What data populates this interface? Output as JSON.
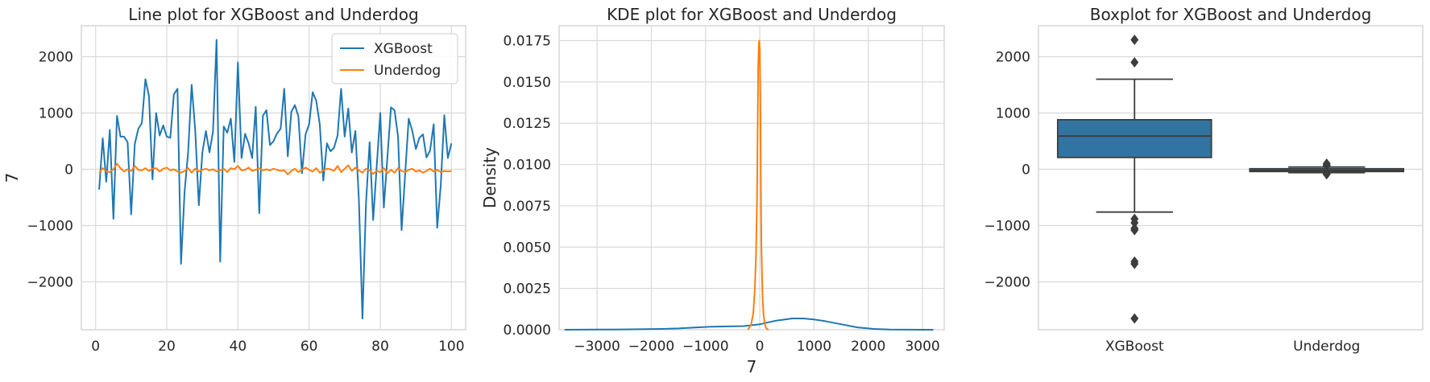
{
  "chart_data": [
    {
      "type": "line",
      "title": "Line plot for XGBoost and Underdog",
      "xlabel": "",
      "ylabel": "7",
      "xlim": [
        -4,
        104
      ],
      "ylim": [
        -2850,
        2550
      ],
      "xticks": [
        0,
        20,
        40,
        60,
        80,
        100
      ],
      "yticks": [
        -2000,
        -1000,
        0,
        1000,
        2000
      ],
      "xtick_labels": [
        "0",
        "20",
        "40",
        "60",
        "80",
        "100"
      ],
      "ytick_labels": [
        "−2000",
        "−1000",
        "0",
        "1000",
        "2000"
      ],
      "grid": true,
      "legend_position": "top-right",
      "series": [
        {
          "name": "XGBoost",
          "color": "#1f77b4",
          "x": [
            1,
            2,
            3,
            4,
            5,
            6,
            7,
            8,
            9,
            10,
            11,
            12,
            13,
            14,
            15,
            16,
            17,
            18,
            19,
            20,
            21,
            22,
            23,
            24,
            25,
            26,
            27,
            28,
            29,
            30,
            31,
            32,
            33,
            34,
            35,
            36,
            37,
            38,
            39,
            40,
            41,
            42,
            43,
            44,
            45,
            46,
            47,
            48,
            49,
            50,
            51,
            52,
            53,
            54,
            55,
            56,
            57,
            58,
            59,
            60,
            61,
            62,
            63,
            64,
            65,
            66,
            67,
            68,
            69,
            70,
            71,
            72,
            73,
            74,
            75,
            76,
            77,
            78,
            79,
            80,
            81,
            82,
            83,
            84,
            85,
            86,
            87,
            88,
            89,
            90,
            91,
            92,
            93,
            94,
            95,
            96,
            97,
            98,
            99,
            100
          ],
          "values": [
            -360,
            550,
            -220,
            700,
            -880,
            950,
            580,
            580,
            480,
            -800,
            450,
            720,
            820,
            1600,
            1300,
            -180,
            1000,
            600,
            780,
            580,
            560,
            1330,
            1430,
            -1680,
            -400,
            300,
            1500,
            700,
            -640,
            300,
            680,
            300,
            670,
            2300,
            -1640,
            760,
            650,
            900,
            130,
            1900,
            200,
            630,
            460,
            200,
            1110,
            -780,
            950,
            1050,
            430,
            500,
            640,
            720,
            1430,
            230,
            1020,
            1140,
            940,
            -70,
            620,
            800,
            1370,
            1220,
            800,
            -200,
            460,
            320,
            380,
            600,
            1430,
            580,
            1080,
            300,
            680,
            -550,
            -2650,
            -600,
            480,
            -900,
            50,
            1000,
            -680,
            200,
            1100,
            1050,
            580,
            -1080,
            -90,
            900,
            680,
            360,
            560,
            620,
            210,
            330,
            800,
            -1040,
            -280,
            960,
            200,
            460
          ]
        },
        {
          "name": "Underdog",
          "color": "#ff7f0e",
          "x": [
            1,
            2,
            3,
            4,
            5,
            6,
            7,
            8,
            9,
            10,
            11,
            12,
            13,
            14,
            15,
            16,
            17,
            18,
            19,
            20,
            21,
            22,
            23,
            24,
            25,
            26,
            27,
            28,
            29,
            30,
            31,
            32,
            33,
            34,
            35,
            36,
            37,
            38,
            39,
            40,
            41,
            42,
            43,
            44,
            45,
            46,
            47,
            48,
            49,
            50,
            51,
            52,
            53,
            54,
            55,
            56,
            57,
            58,
            59,
            60,
            61,
            62,
            63,
            64,
            65,
            66,
            67,
            68,
            69,
            70,
            71,
            72,
            73,
            74,
            75,
            76,
            77,
            78,
            79,
            80,
            81,
            82,
            83,
            84,
            85,
            86,
            87,
            88,
            89,
            90,
            91,
            92,
            93,
            94,
            95,
            96,
            97,
            98,
            99,
            100
          ],
          "values": [
            -60,
            20,
            -40,
            -50,
            0,
            100,
            20,
            -40,
            0,
            -30,
            60,
            -10,
            -20,
            20,
            -30,
            10,
            20,
            -40,
            10,
            30,
            -20,
            0,
            -40,
            -60,
            -30,
            20,
            -60,
            10,
            -40,
            -10,
            10,
            -20,
            0,
            -40,
            -20,
            10,
            -50,
            20,
            0,
            60,
            -20,
            -10,
            30,
            -30,
            -10,
            20,
            -20,
            0,
            -20,
            10,
            -10,
            -30,
            -20,
            -90,
            -30,
            10,
            -50,
            -10,
            30,
            -10,
            -40,
            20,
            -60,
            -20,
            10,
            0,
            -30,
            60,
            -50,
            10,
            70,
            -30,
            30,
            -20,
            -60,
            10,
            -20,
            -80,
            -30,
            -50,
            20,
            -70,
            -10,
            -60,
            20,
            -30,
            -50,
            -10,
            10,
            -40,
            -20,
            -60,
            -30,
            10,
            -40,
            -10,
            -50,
            -30,
            -40,
            -30
          ]
        }
      ]
    },
    {
      "type": "line",
      "title": "KDE plot for XGBoost and Underdog",
      "xlabel": "7",
      "ylabel": "Density",
      "xlim": [
        -3700,
        3400
      ],
      "ylim": [
        0,
        0.0184
      ],
      "xticks": [
        -3000,
        -2000,
        -1000,
        0,
        1000,
        2000,
        3000
      ],
      "yticks": [
        0,
        0.0025,
        0.005,
        0.0075,
        0.01,
        0.0125,
        0.015,
        0.0175
      ],
      "xtick_labels": [
        "−3000",
        "−2000",
        "−1000",
        "0",
        "1000",
        "2000",
        "3000"
      ],
      "ytick_labels": [
        "0.0000",
        "0.0025",
        "0.0050",
        "0.0075",
        "0.0100",
        "0.0125",
        "0.0150",
        "0.0175"
      ],
      "grid": true,
      "series": [
        {
          "color": "#1f77b4",
          "x": [
            -3600,
            -3300,
            -3000,
            -2700,
            -2400,
            -2100,
            -1800,
            -1500,
            -1200,
            -900,
            -600,
            -300,
            0,
            300,
            600,
            800,
            1000,
            1200,
            1500,
            1800,
            2100,
            2400,
            2700,
            3000,
            3200
          ],
          "values": [
            0,
            3e-06,
            8e-06,
            1.5e-05,
            2.5e-05,
            3.5e-05,
            5e-05,
            8e-05,
            0.00013,
            0.00018,
            0.0002,
            0.00022,
            0.00033,
            0.00055,
            0.00068,
            0.00068,
            0.00062,
            0.00052,
            0.00033,
            0.00014,
            5e-05,
            1.5e-05,
            4e-06,
            1e-06,
            0
          ]
        },
        {
          "color": "#ff7f0e",
          "x": [
            -220,
            -160,
            -120,
            -90,
            -70,
            -50,
            -40,
            -30,
            -20,
            -10,
            0,
            10,
            20,
            30,
            50,
            70,
            90,
            110,
            130,
            160
          ],
          "values": [
            0,
            0.0003,
            0.001,
            0.0025,
            0.0045,
            0.008,
            0.012,
            0.0158,
            0.0172,
            0.0175,
            0.017,
            0.014,
            0.009,
            0.005,
            0.002,
            0.0009,
            0.0004,
            0.00015,
            5e-05,
            0
          ]
        }
      ]
    },
    {
      "type": "box",
      "title": "Boxplot for XGBoost and Underdog",
      "xlabel": "",
      "ylabel": "",
      "ylim": [
        -2850,
        2550
      ],
      "yticks": [
        -2000,
        -1000,
        0,
        1000,
        2000
      ],
      "ytick_labels": [
        "−2000",
        "−1000",
        "0",
        "1000",
        "2000"
      ],
      "categories": [
        "XGBoost",
        "Underdog"
      ],
      "grid": true,
      "boxes": [
        {
          "name": "XGBoost",
          "color": "#3274a1",
          "whisker_low": -760,
          "q1": 210,
          "median": 590,
          "q3": 880,
          "whisker_high": 1600,
          "outliers": [
            2300,
            1900,
            -880,
            -950,
            -1050,
            -1080,
            -1640,
            -1680,
            -2650
          ]
        },
        {
          "name": "Underdog",
          "color": "#3274a1",
          "whisker_low": -60,
          "q1": -40,
          "median": -20,
          "q3": 10,
          "whisker_high": 40,
          "outliers": [
            60,
            70,
            100,
            -80,
            -90
          ]
        }
      ]
    }
  ]
}
